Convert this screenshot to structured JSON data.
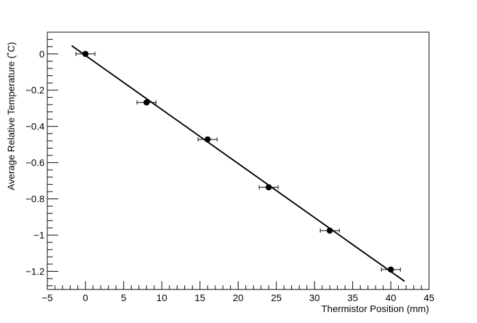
{
  "chart_data": {
    "type": "scatter",
    "xlabel": "Thermistor Position (mm)",
    "ylabel": "Average Relative Temperature (˚C)",
    "xlim": [
      -5,
      45
    ],
    "ylim": [
      -1.3,
      0.12
    ],
    "grid": false,
    "x_ticks": [
      -5,
      0,
      5,
      10,
      15,
      20,
      25,
      30,
      35,
      40,
      45
    ],
    "x_tick_labels": [
      "−5",
      "0",
      "5",
      "10",
      "15",
      "20",
      "25",
      "30",
      "35",
      "40",
      "45"
    ],
    "y_ticks": [
      0,
      -0.2,
      -0.4,
      -0.6,
      -0.8,
      -1,
      -1.2
    ],
    "y_tick_labels": [
      "0",
      "−0.2",
      "−0.4",
      "−0.6",
      "−0.8",
      "−1",
      "−1.2"
    ],
    "points": [
      {
        "x": 0,
        "y": 0,
        "xerr": 1.25
      },
      {
        "x": 8,
        "y": -0.268,
        "xerr": 1.25
      },
      {
        "x": 16,
        "y": -0.472,
        "xerr": 1.25
      },
      {
        "x": 24,
        "y": -0.736,
        "xerr": 1.25
      },
      {
        "x": 32,
        "y": -0.975,
        "xerr": 1.25
      },
      {
        "x": 40,
        "y": -1.19,
        "xerr": 1.25
      }
    ],
    "fit_line": {
      "x": [
        -1.8,
        41.8
      ],
      "y": [
        0.045,
        -1.255
      ]
    },
    "colors": {
      "points": "#000000",
      "line": "#000000",
      "axes": "#000000"
    }
  }
}
